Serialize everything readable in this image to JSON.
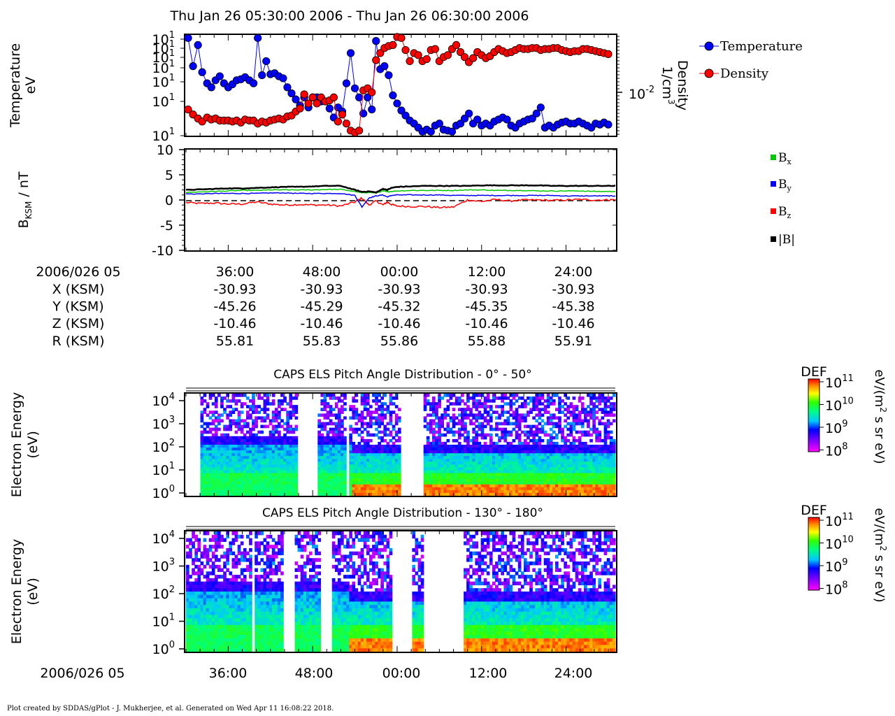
{
  "page": {
    "title": "Thu Jan 26 05:30:00 2006 - Thu Jan 26 06:30:00 2006",
    "footer": "Plot created by SDDAS/gPlot - J. Mukherjee, et al.  Generated on Wed Apr 11 16:08:22 2018."
  },
  "colors": {
    "temperature": "#0000ff",
    "density": "#ff0000",
    "bx": "#00c800",
    "by": "#0000ff",
    "bz": "#ff0000",
    "btot": "#000000"
  },
  "chart_data": [
    {
      "id": "plasma-moments",
      "type": "scatter",
      "ylabel": "Temperature",
      "yunit": "eV",
      "y2label": "Density",
      "y2unit_base": "1/cm",
      "y2unit_sup": "3",
      "left_ticks": [
        {
          "base": "10",
          "exp": "1"
        },
        {
          "base": "10",
          "exp": "1"
        },
        {
          "base": "10",
          "exp": "1"
        },
        {
          "base": "10",
          "exp": "1"
        },
        {
          "base": "10",
          "exp": "1"
        },
        {
          "base": "10",
          "exp": "1"
        },
        {
          "base": "10",
          "exp": "1"
        }
      ],
      "right_ticks": [
        {
          "base": "10",
          "exp": "-2"
        }
      ],
      "legend": [
        "Temperature",
        "Density"
      ],
      "xlim_minutes": [
        30,
        91
      ],
      "temperature_series": {
        "name": "Temperature",
        "x": [
          30.3,
          31.0,
          31.7,
          32.3,
          33.0,
          33.6,
          34.2,
          34.8,
          35.4,
          36.0,
          36.6,
          37.2,
          37.8,
          38.4,
          39.0,
          39.6,
          40.2,
          40.8,
          41.4,
          42.0,
          42.6,
          43.2,
          43.8,
          44.4,
          45.0,
          45.6,
          46.2,
          46.8,
          47.4,
          48.0,
          48.6,
          49.2,
          49.8,
          50.4,
          51.0,
          51.6,
          52.2,
          52.8,
          53.4,
          54.0,
          54.6,
          55.2,
          55.8,
          56.4,
          57.0,
          57.6,
          58.2,
          58.8,
          59.4,
          60.0,
          60.6,
          61.2,
          61.8,
          62.4,
          63.0,
          63.6,
          64.2,
          64.8,
          65.4,
          66.0,
          66.6,
          67.2,
          67.8,
          68.4,
          69.0,
          69.6,
          70.2,
          70.8,
          71.4,
          72.0,
          72.6,
          73.2,
          73.8,
          74.4,
          75.0,
          75.6,
          76.2,
          76.8,
          77.4,
          78.0,
          78.6,
          79.2,
          79.8,
          80.4,
          81.0,
          81.6,
          82.2,
          82.8,
          83.4,
          84.0,
          84.6,
          85.2,
          85.8,
          86.4,
          87.0,
          87.6,
          88.2,
          88.8,
          89.4,
          90.0
        ],
        "y": [
          0.97,
          0.69,
          0.9,
          0.63,
          0.52,
          0.48,
          0.55,
          0.59,
          0.52,
          0.48,
          0.51,
          0.55,
          0.56,
          0.58,
          0.55,
          0.52,
          0.97,
          0.6,
          0.74,
          0.61,
          0.62,
          0.59,
          0.57,
          0.48,
          0.42,
          0.36,
          0.3,
          0.38,
          0.28,
          0.38,
          0.38,
          0.34,
          0.34,
          0.27,
          0.18,
          0.28,
          0.24,
          0.52,
          0.82,
          0.47,
          0.38,
          0.22,
          0.38,
          0.26,
          0.94,
          0.66,
          0.69,
          0.6,
          0.4,
          0.32,
          0.25,
          0.2,
          0.15,
          0.12,
          0.08,
          0.04,
          0.06,
          0.04,
          0.1,
          0.12,
          0.06,
          0.05,
          0.04,
          0.1,
          0.12,
          0.17,
          0.22,
          0.12,
          0.16,
          0.1,
          0.12,
          0.1,
          0.14,
          0.16,
          0.18,
          0.16,
          0.1,
          0.08,
          0.12,
          0.14,
          0.16,
          0.17,
          0.22,
          0.28,
          0.08,
          0.1,
          0.08,
          0.11,
          0.13,
          0.14,
          0.12,
          0.12,
          0.14,
          0.12,
          0.1,
          0.08,
          0.12,
          0.11,
          0.13,
          0.11
        ]
      },
      "density_series": {
        "name": "Density",
        "x": [
          30.3,
          31.0,
          31.7,
          32.3,
          33.0,
          33.6,
          34.2,
          34.8,
          35.4,
          36.0,
          36.6,
          37.2,
          37.8,
          38.4,
          39.0,
          39.6,
          40.2,
          40.8,
          41.4,
          42.0,
          42.6,
          43.2,
          43.8,
          44.4,
          45.0,
          45.6,
          46.2,
          46.8,
          47.4,
          48.0,
          48.6,
          49.2,
          49.8,
          50.4,
          51.0,
          51.6,
          52.2,
          52.8,
          53.4,
          54.0,
          54.6,
          55.2,
          55.8,
          56.4,
          57.0,
          57.6,
          58.2,
          58.8,
          59.4,
          60.0,
          60.6,
          61.2,
          61.8,
          62.4,
          63.0,
          63.6,
          64.2,
          64.8,
          65.4,
          66.0,
          66.6,
          67.2,
          67.8,
          68.4,
          69.0,
          69.6,
          70.2,
          70.8,
          71.4,
          72.0,
          72.6,
          73.2,
          73.8,
          74.4,
          75.0,
          75.6,
          76.2,
          76.8,
          77.4,
          78.0,
          78.6,
          79.2,
          79.8,
          80.4,
          81.0,
          81.6,
          82.2,
          82.8,
          83.4,
          84.0,
          84.6,
          85.2,
          85.8,
          86.4,
          87.0,
          87.6,
          88.2,
          88.8,
          89.4,
          90.0
        ],
        "y": [
          0.26,
          0.21,
          0.17,
          0.14,
          0.18,
          0.16,
          0.17,
          0.15,
          0.15,
          0.15,
          0.14,
          0.15,
          0.13,
          0.16,
          0.15,
          0.15,
          0.12,
          0.14,
          0.13,
          0.15,
          0.16,
          0.17,
          0.16,
          0.19,
          0.2,
          0.24,
          0.27,
          0.41,
          0.32,
          0.38,
          0.32,
          0.38,
          0.34,
          0.35,
          0.38,
          0.14,
          0.21,
          0.12,
          0.05,
          0.03,
          0.05,
          0.45,
          0.47,
          0.43,
          0.75,
          0.82,
          0.87,
          0.89,
          0.9,
          0.98,
          0.97,
          0.85,
          0.74,
          0.82,
          0.8,
          0.74,
          0.76,
          0.85,
          0.86,
          0.74,
          0.78,
          0.8,
          0.86,
          0.9,
          0.83,
          0.78,
          0.73,
          0.77,
          0.83,
          0.8,
          0.77,
          0.79,
          0.83,
          0.86,
          0.84,
          0.82,
          0.83,
          0.85,
          0.87,
          0.86,
          0.86,
          0.87,
          0.87,
          0.85,
          0.86,
          0.86,
          0.87,
          0.87,
          0.85,
          0.84,
          0.83,
          0.84,
          0.84,
          0.86,
          0.86,
          0.85,
          0.84,
          0.83,
          0.82,
          0.81
        ]
      }
    },
    {
      "id": "magnetic-field",
      "type": "line",
      "ylabel_main": "B",
      "ylabel_sub": "KSM",
      "ylabel_unit": " / nT",
      "yticks": [
        "10",
        "5",
        "0",
        "-5",
        "-10"
      ],
      "ylim": [
        -10,
        10
      ],
      "xlim_minutes": [
        30,
        91
      ],
      "legend": [
        {
          "base": "B",
          "sub": "x"
        },
        {
          "base": "B",
          "sub": "y"
        },
        {
          "base": "B",
          "sub": "z"
        },
        {
          "base": "|B|",
          "sub": ""
        }
      ],
      "series_x": [
        30,
        32,
        34,
        36,
        38,
        40,
        42,
        44,
        46,
        48,
        50,
        52,
        54,
        55,
        56,
        57,
        58,
        58.6,
        59.2,
        60,
        62,
        64,
        66,
        68,
        70,
        72,
        74,
        76,
        78,
        80,
        82,
        84,
        86,
        88,
        90,
        91
      ],
      "bx": [
        1.5,
        1.6,
        1.7,
        1.8,
        1.9,
        1.9,
        2.0,
        2.0,
        2.0,
        2.0,
        2.1,
        2.1,
        1.7,
        1.4,
        1.5,
        1.4,
        1.8,
        1.6,
        1.7,
        1.8,
        1.9,
        1.9,
        1.9,
        1.9,
        2.0,
        2.0,
        1.9,
        1.9,
        1.9,
        1.8,
        1.8,
        1.8,
        1.8,
        1.7,
        1.7,
        1.7
      ],
      "by": [
        1.2,
        1.2,
        1.3,
        1.3,
        1.3,
        1.3,
        1.4,
        1.4,
        1.3,
        1.3,
        1.3,
        1.3,
        0.9,
        -1.4,
        0.4,
        0.8,
        1.0,
        0.6,
        0.9,
        1.0,
        1.0,
        1.0,
        1.0,
        0.9,
        0.9,
        0.9,
        0.9,
        0.9,
        0.9,
        0.9,
        0.9,
        0.8,
        0.8,
        0.8,
        0.8,
        0.8
      ],
      "bz": [
        -0.5,
        -0.7,
        -0.6,
        -0.8,
        -0.8,
        -0.4,
        -0.8,
        -1.0,
        -0.9,
        -1.0,
        -1.0,
        -1.2,
        -0.4,
        0.4,
        -1.0,
        -0.2,
        -1.0,
        -0.4,
        -0.9,
        -1.2,
        -1.3,
        -1.3,
        -1.5,
        -1.4,
        0.0,
        -0.3,
        0.1,
        -0.2,
        0.0,
        0.0,
        -0.1,
        0.0,
        0.1,
        0.0,
        0.0,
        0.1
      ],
      "btot": [
        2.0,
        2.1,
        2.2,
        2.3,
        2.3,
        2.4,
        2.5,
        2.6,
        2.6,
        2.7,
        2.8,
        2.8,
        2.0,
        1.6,
        1.7,
        1.5,
        2.2,
        2.0,
        2.4,
        2.6,
        2.7,
        2.8,
        2.8,
        2.8,
        2.8,
        2.9,
        2.9,
        2.9,
        2.9,
        2.9,
        2.8,
        2.8,
        2.8,
        2.8,
        2.8,
        2.8
      ]
    },
    {
      "id": "els-pad-0-50",
      "type": "heatmap",
      "title": "CAPS ELS Pitch Angle Distribution - 0° - 50°",
      "ylabel": "Electron Energy",
      "yunit": "(eV)",
      "yticks": [
        {
          "base": "10",
          "exp": "4"
        },
        {
          "base": "10",
          "exp": "3"
        },
        {
          "base": "10",
          "exp": "2"
        },
        {
          "base": "10",
          "exp": "1"
        },
        {
          "base": "10",
          "exp": "0"
        }
      ],
      "xlim_minutes": [
        30,
        91
      ],
      "data_gaps_minutes": [
        [
          30,
          32
        ],
        [
          46,
          48.6
        ],
        [
          51,
          51.3
        ],
        [
          52.8,
          53.3
        ],
        [
          60.4,
          63.8
        ]
      ],
      "colorbar": {
        "label": "DEF",
        "unit_a": "eV/(m",
        "unit_sup": "2",
        "unit_b": " s sr eV)",
        "ticks": [
          {
            "base": "10",
            "exp": "11"
          },
          {
            "base": "10",
            "exp": "10"
          },
          {
            "base": "10",
            "exp": "9"
          },
          {
            "base": "10",
            "exp": "8"
          }
        ]
      }
    },
    {
      "id": "els-pad-130-180",
      "type": "heatmap",
      "title": "CAPS ELS Pitch Angle Distribution - 130° - 180°",
      "ylabel": "Electron Energy",
      "yunit": "(eV)",
      "yticks": [
        {
          "base": "10",
          "exp": "4"
        },
        {
          "base": "10",
          "exp": "3"
        },
        {
          "base": "10",
          "exp": "2"
        },
        {
          "base": "10",
          "exp": "1"
        },
        {
          "base": "10",
          "exp": "0"
        }
      ],
      "xlim_minutes": [
        30,
        91
      ],
      "data_gaps_minutes": [
        [
          39.2,
          39.8
        ],
        [
          44.0,
          45.6
        ],
        [
          49.2,
          50.6
        ],
        [
          59.2,
          62.2
        ],
        [
          63.6,
          69.6
        ]
      ],
      "colorbar": {
        "label": "DEF",
        "unit_a": "eV/(m",
        "unit_sup": "2",
        "unit_b": " s sr eV)",
        "ticks": [
          {
            "base": "10",
            "exp": "11"
          },
          {
            "base": "10",
            "exp": "10"
          },
          {
            "base": "10",
            "exp": "9"
          },
          {
            "base": "10",
            "exp": "8"
          }
        ]
      }
    }
  ],
  "ephemeris": {
    "date_label": "2006/026 05",
    "time_ticks": [
      "36:00",
      "48:00",
      "00:00",
      "12:00",
      "24:00"
    ],
    "rows": [
      {
        "label": "X (KSM)",
        "values": [
          "-30.93",
          "-30.93",
          "-30.93",
          "-30.93",
          "-30.93"
        ]
      },
      {
        "label": "Y (KSM)",
        "values": [
          "-45.26",
          "-45.29",
          "-45.32",
          "-45.35",
          "-45.38"
        ]
      },
      {
        "label": "Z (KSM)",
        "values": [
          "-10.46",
          "-10.46",
          "-10.46",
          "-10.46",
          "-10.46"
        ]
      },
      {
        "label": "R (KSM)",
        "values": [
          "55.81",
          "55.83",
          "55.86",
          "55.88",
          "55.91"
        ]
      }
    ]
  },
  "bottom_axis": {
    "date_label": "2006/026 05",
    "time_ticks": [
      "36:00",
      "48:00",
      "00:00",
      "12:00",
      "24:00"
    ]
  }
}
